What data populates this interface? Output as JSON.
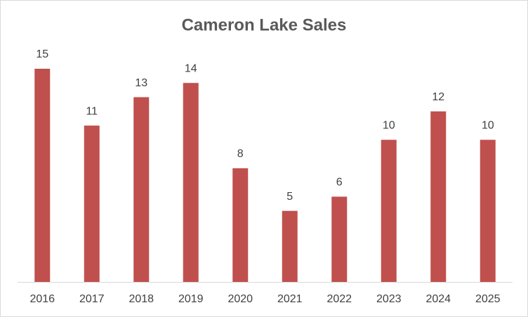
{
  "chart_data": {
    "type": "bar",
    "title": "Cameron Lake Sales",
    "categories": [
      "2016",
      "2017",
      "2018",
      "2019",
      "2020",
      "2021",
      "2022",
      "2023",
      "2024",
      "2025"
    ],
    "values": [
      15,
      11,
      13,
      14,
      8,
      5,
      6,
      10,
      12,
      10
    ],
    "color": "#c0504d"
  }
}
